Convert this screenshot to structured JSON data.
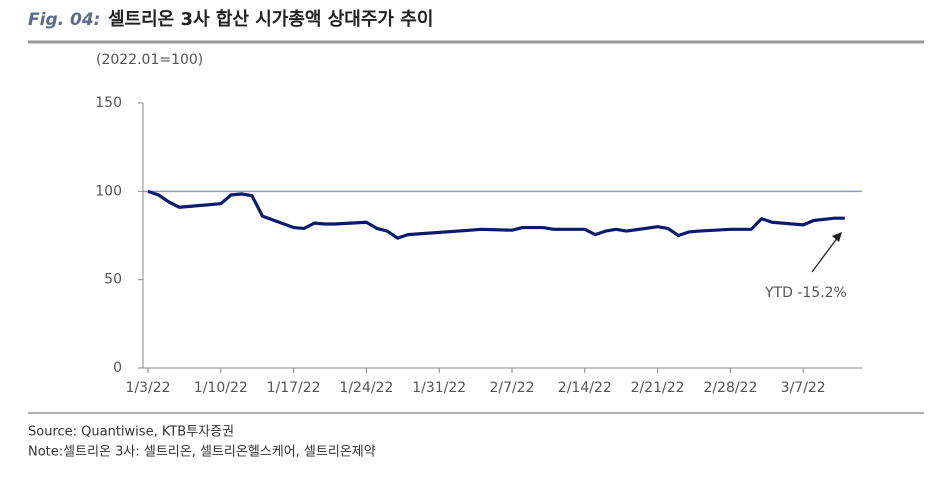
{
  "chart_data": {
    "type": "line",
    "figure_label": "Fig. 04:",
    "title": "셀트리온 3사 합산 시가총액 상대주가 추이",
    "y_label": "(2022.01=100)",
    "x": [
      "1/3/22",
      "1/4/22",
      "1/5/22",
      "1/6/22",
      "1/7/22",
      "1/10/22",
      "1/11/22",
      "1/12/22",
      "1/13/22",
      "1/14/22",
      "1/17/22",
      "1/18/22",
      "1/19/22",
      "1/20/22",
      "1/21/22",
      "1/24/22",
      "1/25/22",
      "1/26/22",
      "1/27/22",
      "1/28/22",
      "2/3/22",
      "2/4/22",
      "2/7/22",
      "2/8/22",
      "2/9/22",
      "2/10/22",
      "2/11/22",
      "2/14/22",
      "2/15/22",
      "2/16/22",
      "2/17/22",
      "2/18/22",
      "2/21/22",
      "2/22/22",
      "2/23/22",
      "2/24/22",
      "2/25/22",
      "2/28/22",
      "3/2/22",
      "3/3/22",
      "3/4/22",
      "3/7/22",
      "3/8/22",
      "3/10/22",
      "3/11/22"
    ],
    "series": [
      {
        "name": "셀트리온 3사",
        "color": "#0c1a6b",
        "values": [
          100,
          98,
          94,
          91,
          91.5,
          93,
          98,
          98.5,
          97.5,
          86,
          79.5,
          79,
          82,
          81.5,
          81.5,
          82.5,
          79,
          77.5,
          73.5,
          75.5,
          78,
          78.5,
          78,
          79.5,
          79.5,
          79.5,
          78.5,
          78.5,
          75.5,
          77.5,
          78.5,
          77.5,
          80,
          79,
          75,
          77,
          77.5,
          78.5,
          78.5,
          84.5,
          82.5,
          81,
          83.5,
          84.8,
          84.8
        ]
      }
    ],
    "ylim": [
      0,
      150
    ],
    "yticks": [
      0,
      50,
      100,
      150
    ],
    "xticks": [
      "1/3/22",
      "1/10/22",
      "1/17/22",
      "1/24/22",
      "1/31/22",
      "2/7/22",
      "2/14/22",
      "2/21/22",
      "2/28/22",
      "3/7/22"
    ],
    "reference_line": 100,
    "annotation": "YTD -15.2%",
    "source": "Source: Quantiwise, KTB투자증권",
    "note": "Note:셀트리온 3사: 셀트리온, 셀트리온헬스케어, 셀트리온제약"
  }
}
